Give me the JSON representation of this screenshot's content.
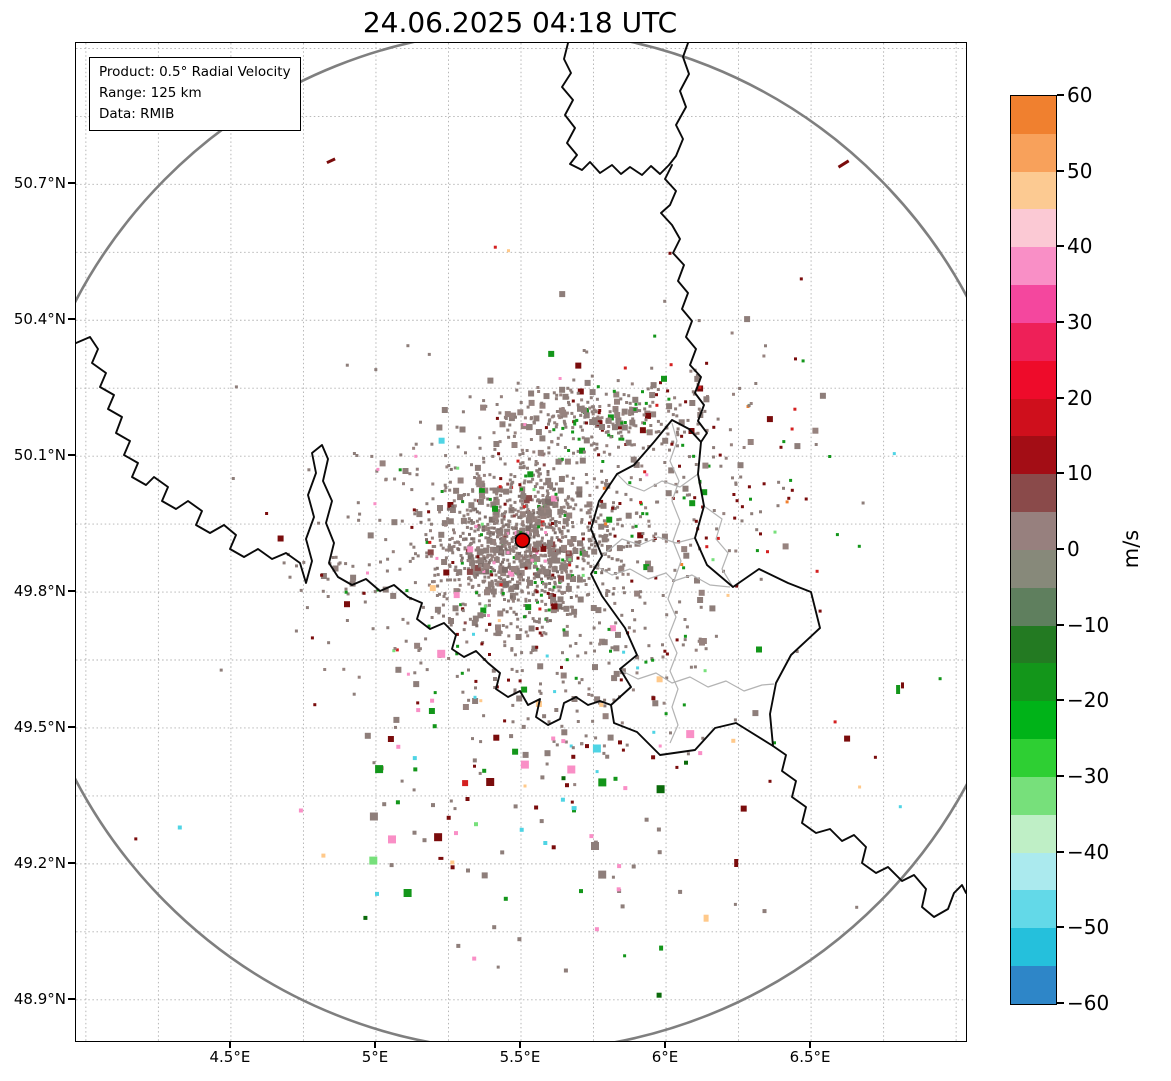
{
  "title": "24.06.2025 04:18 UTC",
  "info_box": {
    "product": "Product: 0.5° Radial Velocity",
    "range": "Range: 125 km",
    "data_source": "Data: RMIB"
  },
  "chart_data": {
    "type": "heatmap",
    "title": "24.06.2025 04:18 UTC",
    "product": "0.5° Radial Velocity",
    "range_km": 125,
    "data_source": "RMIB",
    "units": "m/s",
    "x_axis": {
      "range": [
        3.966,
        7.034
      ],
      "ticks": [
        {
          "value": 4.5,
          "label": "4.5°E"
        },
        {
          "value": 5.0,
          "label": "5°E"
        },
        {
          "value": 5.5,
          "label": "5.5°E"
        },
        {
          "value": 6.0,
          "label": "6°E"
        },
        {
          "value": 6.5,
          "label": "6.5°E"
        }
      ]
    },
    "y_axis": {
      "range": [
        48.809,
        51.012
      ],
      "ticks": [
        {
          "value": 50.7,
          "label": "50.7°N"
        },
        {
          "value": 50.4,
          "label": "50.4°N"
        },
        {
          "value": 50.1,
          "label": "50.1°N"
        },
        {
          "value": 49.8,
          "label": "49.8°N"
        },
        {
          "value": 49.5,
          "label": "49.5°N"
        },
        {
          "value": 49.2,
          "label": "49.2°N"
        },
        {
          "value": 48.9,
          "label": "48.9°N"
        }
      ]
    },
    "grid": {
      "x_start": 4.0,
      "x_step": 0.25,
      "y_start": 48.75,
      "y_step": 0.15
    },
    "colorbar": {
      "label": "m/s",
      "range": [
        -60,
        60
      ],
      "segment_step": 5,
      "ticks": [
        {
          "value": 60,
          "label": "60"
        },
        {
          "value": 50,
          "label": "50"
        },
        {
          "value": 40,
          "label": "40"
        },
        {
          "value": 30,
          "label": "30"
        },
        {
          "value": 20,
          "label": "20"
        },
        {
          "value": 10,
          "label": "10"
        },
        {
          "value": 0,
          "label": "0"
        },
        {
          "value": -10,
          "label": "−10"
        },
        {
          "value": -20,
          "label": "−20"
        },
        {
          "value": -30,
          "label": "−30"
        },
        {
          "value": -40,
          "label": "−40"
        },
        {
          "value": -50,
          "label": "−50"
        },
        {
          "value": -60,
          "label": "−60"
        }
      ],
      "colors_top_to_bottom": [
        "#f0802f",
        "#f8a15b",
        "#fcca92",
        "#fbc9d4",
        "#f98fc6",
        "#f4479e",
        "#ee2058",
        "#ee0b2a",
        "#cf0f1c",
        "#a30d15",
        "#8a4a4a",
        "#97807e",
        "#87897a",
        "#5f7f5e",
        "#237a22",
        "#13961a",
        "#00b318",
        "#2ecf33",
        "#77e07b",
        "#bfefc6",
        "#abeaee",
        "#63d9e8",
        "#25c0dc",
        "#2e86c8"
      ]
    },
    "radar_site": {
      "lon": 5.505,
      "lat": 49.914
    },
    "range_ring": {
      "radius_km": 125,
      "color": "#7f7f7f"
    },
    "echo_clusters": [
      {
        "name": "core",
        "lon": 5.505,
        "lat": 49.912,
        "sigma_lon": 0.15,
        "sigma_lat": 0.082,
        "count": 950,
        "size": 3,
        "palette": [
          [
            "#8e7e7a",
            0.55
          ],
          [
            "#97837f",
            0.2
          ],
          [
            "#7e6e6a",
            0.15
          ],
          [
            "#8a4a4a",
            0.04
          ],
          [
            "#7a0c0c",
            0.02
          ],
          [
            "#13961a",
            0.02
          ],
          [
            "#f98fc6",
            0.01
          ],
          [
            "#d42020",
            0.01
          ]
        ]
      },
      {
        "name": "halo",
        "lon": 5.505,
        "lat": 49.898,
        "sigma_lon": 0.29,
        "sigma_lat": 0.15,
        "count": 500,
        "size": 3,
        "palette": [
          [
            "#8e7e7a",
            0.62
          ],
          [
            "#97837f",
            0.2
          ],
          [
            "#7a0c0c",
            0.06
          ],
          [
            "#13961a",
            0.06
          ],
          [
            "#d42020",
            0.02
          ],
          [
            "#77e07b",
            0.02
          ],
          [
            "#f98fc6",
            0.02
          ]
        ]
      },
      {
        "name": "ne-band",
        "lon": 5.76,
        "lat": 50.185,
        "sigma_lon": 0.19,
        "sigma_lat": 0.04,
        "count": 280,
        "size": 3,
        "palette": [
          [
            "#8e7e7a",
            0.6
          ],
          [
            "#97837f",
            0.28
          ],
          [
            "#7a0c0c",
            0.06
          ],
          [
            "#13961a",
            0.06
          ]
        ]
      },
      {
        "name": "east",
        "lon": 6.14,
        "lat": 50.04,
        "sigma_lon": 0.2,
        "sigma_lat": 0.17,
        "count": 160,
        "size": 3,
        "palette": [
          [
            "#8e7e7a",
            0.5
          ],
          [
            "#97837f",
            0.12
          ],
          [
            "#13961a",
            0.14
          ],
          [
            "#7a0c0c",
            0.12
          ],
          [
            "#d42020",
            0.05
          ],
          [
            "#77e07b",
            0.05
          ],
          [
            "#f0802f",
            0.02
          ]
        ]
      },
      {
        "name": "south",
        "lon": 5.62,
        "lat": 49.6,
        "sigma_lon": 0.31,
        "sigma_lat": 0.13,
        "count": 170,
        "size": 3,
        "palette": [
          [
            "#8e7e7a",
            0.66
          ],
          [
            "#97837f",
            0.1
          ],
          [
            "#13961a",
            0.08
          ],
          [
            "#7a0c0c",
            0.08
          ],
          [
            "#4fd4e4",
            0.03
          ],
          [
            "#f98fc6",
            0.03
          ],
          [
            "#ffc98a",
            0.02
          ]
        ]
      },
      {
        "name": "far-south",
        "lon": 5.55,
        "lat": 49.31,
        "sigma_lon": 0.38,
        "sigma_lat": 0.155,
        "count": 95,
        "size": 4,
        "palette": [
          [
            "#8e7e7a",
            0.4
          ],
          [
            "#f98fc6",
            0.12
          ],
          [
            "#4fd4e4",
            0.1
          ],
          [
            "#ffc98a",
            0.1
          ],
          [
            "#7a0c0c",
            0.1
          ],
          [
            "#13961a",
            0.1
          ],
          [
            "#77e07b",
            0.05
          ],
          [
            "#0a6a0a",
            0.03
          ]
        ]
      },
      {
        "name": "sparse-wide",
        "lon": 5.76,
        "lat": 49.78,
        "sigma_lon": 0.69,
        "sigma_lat": 0.4,
        "count": 75,
        "size": 3,
        "palette": [
          [
            "#8e7e7a",
            0.5
          ],
          [
            "#13961a",
            0.14
          ],
          [
            "#7a0c0c",
            0.14
          ],
          [
            "#4fd4e4",
            0.07
          ],
          [
            "#f98fc6",
            0.07
          ],
          [
            "#ffc98a",
            0.05
          ],
          [
            "#d42020",
            0.03
          ]
        ]
      },
      {
        "name": "west-specks",
        "lon": 4.845,
        "lat": 49.83,
        "sigma_lon": 0.1,
        "sigma_lat": 0.035,
        "count": 30,
        "size": 3,
        "palette": [
          [
            "#8e7e7a",
            0.8
          ],
          [
            "#13961a",
            0.1
          ],
          [
            "#7a0c0c",
            0.1
          ]
        ]
      }
    ],
    "isolated_echoes": [
      {
        "lon": 4.845,
        "lat": 50.752,
        "w": 9,
        "h": 3,
        "rot": -25,
        "color": "#7a0c0c"
      },
      {
        "lon": 6.612,
        "lat": 50.745,
        "w": 12,
        "h": 3,
        "rot": -32,
        "color": "#7a0c0c"
      },
      {
        "lon": 6.8,
        "lat": 49.585,
        "w": 4,
        "h": 9,
        "rot": 0,
        "color": "#13961a"
      },
      {
        "lon": 6.815,
        "lat": 49.594,
        "w": 3,
        "h": 6,
        "rot": 0,
        "color": "#7a0c0c"
      },
      {
        "lon": 6.242,
        "lat": 49.202,
        "w": 4,
        "h": 8,
        "rot": 0,
        "color": "#7a0c0c"
      },
      {
        "lon": 6.138,
        "lat": 49.08,
        "w": 5,
        "h": 7,
        "rot": 0,
        "color": "#ffc98a"
      },
      {
        "lon": 5.983,
        "lat": 49.014,
        "w": 4,
        "h": 5,
        "rot": 0,
        "color": "#13961a"
      },
      {
        "lon": 5.976,
        "lat": 48.91,
        "w": 5,
        "h": 5,
        "rot": 0,
        "color": "#0a6a0a"
      },
      {
        "lon": 5.707,
        "lat": 49.14,
        "w": 4,
        "h": 4,
        "rot": 0,
        "color": "#13961a"
      },
      {
        "lon": 5.683,
        "lat": 49.323,
        "w": 5,
        "h": 4,
        "rot": 0,
        "color": "#4fd4e4"
      },
      {
        "lon": 5.276,
        "lat": 49.268,
        "w": 4,
        "h": 4,
        "rot": 0,
        "color": "#f98fc6"
      },
      {
        "lon": 5.224,
        "lat": 49.212,
        "w": 5,
        "h": 3,
        "rot": 0,
        "color": "#7a0c0c"
      }
    ]
  },
  "map_geometry": {
    "units": "plot pixels (890x998)",
    "country_borders": [
      "M 492,0 L 488,16 495,30 486,44 497,57 489,72 499,85 491,100 501,112 494,121 506,127 514,119 524,130 536,122 545,131 554,124 566,132 575,123 584,131 593,122 600,113 607,96 600,82 610,64 604,48 613,31 607,14 612,0",
      "M 596,122 L 589,136 600,148 594,162 585,170 596,182 604,196 597,210 608,222 602,238 612,250 606,266 616,278 610,294 620,306 614,322 625,334 619,350 628,362 622,378 631,390 625,399",
      "M 596,377 L 613,386 625,399 622,431 628,463 619,495 631,522 657,544 683,526 712,540 735,549 744,585 715,612 700,640 694,671 697,703 660,680 639,685 619,707 584,712 561,689 538,680 535,662 555,644 544,626 561,612 549,585 526,553 515,531 526,513 515,486 523,458 541,431 558,422 578,399 Z",
      "M 0,300 L 14,294 22,306 16,320 30,330 24,344 38,352 32,366 46,374 40,390 54,398 48,412 62,420 56,434 70,442 78,434 92,444 86,458 100,466 112,458 126,468 120,482 134,490 148,482 160,492 154,506 168,514 182,506 196,516 210,510 224,520 230,540 236,518 230,496 238,474 232,452 240,430 236,410 246,402 252,416 247,438 256,458 250,480 258,500 253,520 262,534 276,542 290,536 304,548 318,542 332,554 346,560 341,576 354,586 368,580 380,592 376,606 388,614 400,608 412,620 424,630 420,646 432,654 444,648 452,662 464,656 460,674 472,682 484,676 488,660 500,654 512,662 524,658 535,662",
      "M 697,703 L 710,712 706,728 720,738 716,754 730,764 726,780 740,790 754,786 766,798 778,792 790,804 786,820 800,830 812,824 826,838 838,832 850,846 846,864 858,874 872,866 878,850 886,842 890,850"
    ],
    "district_borders": [
      "M 596,380 L 601,398 594,418 603,438 596,458 604,478 597,498 605,518 598,538",
      "M 518,522 L 536,532 554,526 572,536 590,530 598,538 616,532 634,542 654,544",
      "M 598,538 L 592,556 600,574 593,592 601,610 594,628 602,646 596,664 602,682 594,700",
      "M 544,627 L 562,636 580,630 596,640 614,634 632,644 650,638 668,648 686,642 698,641",
      "M 622,431 L 604,444 586,438 568,448 552,442 541,431",
      "M 628,463 L 646,476 640,496 652,510 646,526 657,544",
      "M 619,495 L 600,500 582,494 564,502 546,496 526,513"
    ]
  },
  "colors": {
    "country_border": "#0a0a0a",
    "district_border": "#b3b3b3",
    "grid": "#b0b0b0",
    "range_ring": "#7f7f7f",
    "marker_fill": "#e00000",
    "marker_edge": "#000000"
  }
}
